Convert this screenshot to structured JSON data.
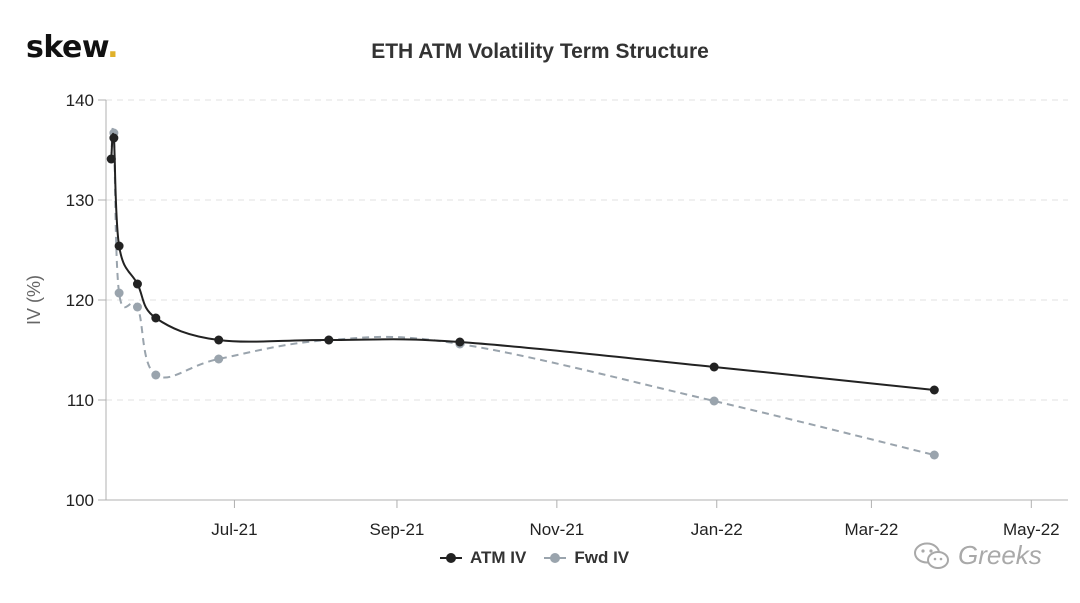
{
  "brand": {
    "name": "skew",
    "dot": "."
  },
  "chart_data": {
    "type": "line",
    "title": "ETH ATM Volatility Term Structure",
    "xlabel": "",
    "ylabel": "IV (%)",
    "ylim": [
      100,
      140
    ],
    "xlim": [
      "2021-05-13",
      "2022-05-15"
    ],
    "yticks": [
      100,
      110,
      120,
      130,
      140
    ],
    "xticks": [
      {
        "date": "2021-07-01",
        "label": "Jul-21"
      },
      {
        "date": "2021-09-01",
        "label": "Sep-21"
      },
      {
        "date": "2021-11-01",
        "label": "Nov-21"
      },
      {
        "date": "2022-01-01",
        "label": "Jan-22"
      },
      {
        "date": "2022-03-01",
        "label": "Mar-22"
      },
      {
        "date": "2022-05-01",
        "label": "May-22"
      }
    ],
    "grid": "horizontal dashed",
    "legend": "bottom-center",
    "series": [
      {
        "name": "ATM IV",
        "color": "#222222",
        "style": "solid",
        "points": [
          {
            "x": "2021-05-15",
            "y": 134.1
          },
          {
            "x": "2021-05-16",
            "y": 136.2
          },
          {
            "x": "2021-05-18",
            "y": 125.4
          },
          {
            "x": "2021-05-25",
            "y": 121.6
          },
          {
            "x": "2021-06-01",
            "y": 118.2
          },
          {
            "x": "2021-06-25",
            "y": 116.0
          },
          {
            "x": "2021-08-06",
            "y": 116.0
          },
          {
            "x": "2021-09-25",
            "y": 115.8
          },
          {
            "x": "2021-12-31",
            "y": 113.3
          },
          {
            "x": "2022-03-25",
            "y": 111.0
          }
        ]
      },
      {
        "name": "Fwd IV",
        "color": "#9aa4ad",
        "style": "dashed",
        "points": [
          {
            "x": "2021-05-15",
            "y": 134.1
          },
          {
            "x": "2021-05-16",
            "y": 136.7
          },
          {
            "x": "2021-05-18",
            "y": 120.7
          },
          {
            "x": "2021-05-25",
            "y": 119.3
          },
          {
            "x": "2021-06-01",
            "y": 112.5
          },
          {
            "x": "2021-06-25",
            "y": 114.1
          },
          {
            "x": "2021-08-06",
            "y": 116.0
          },
          {
            "x": "2021-09-25",
            "y": 115.6
          },
          {
            "x": "2021-12-31",
            "y": 109.9
          },
          {
            "x": "2022-03-25",
            "y": 104.5
          }
        ]
      }
    ]
  },
  "colors": {
    "axis": "#b0b0b0",
    "grid": "#e2e2e2",
    "brand_dot": "#e0b12a"
  },
  "watermark": {
    "text": "Greeks",
    "icon": "wechat-icon"
  }
}
